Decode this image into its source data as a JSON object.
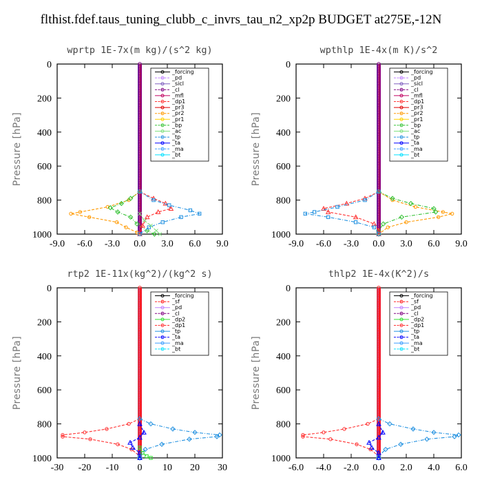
{
  "title": "flthist.fdef.taus_tuning_clubb_c_invrs_tau_n2_xp2p  BUDGET at275E,-12N",
  "colors": {
    "_forcing": "#000000",
    "_pd": "#c080ff",
    "_sicl": "#8060c0",
    "_cl": "#800080",
    "_mfl": "#c00060",
    "_dp1": "#ff3030",
    "_pr3": "#e00000",
    "_pr2": "#ff9900",
    "_pr1": "#ffd000",
    "_bp": "#30c030",
    "_ac": "#80e080",
    "_tp": "#2090e0",
    "_ta": "#0000ff",
    "_ma": "#40a0ff",
    "_bt": "#00e0ff",
    "_sf": "#ff2020",
    "_dp2": "#30e030"
  },
  "chart_data": [
    {
      "type": "line",
      "title": "wprtp  1E-7x(m kg)/(s^2 kg)",
      "ylabel": "Pressure [hPa]",
      "xlim": [
        -9,
        9
      ],
      "ylim": [
        1000,
        0
      ],
      "y_inverted": true,
      "xticks": [
        "-9.0",
        "-6.0",
        "-3.0",
        "0.0",
        "3.0",
        "6.0",
        "9.0"
      ],
      "yticks": [
        "0",
        "200",
        "400",
        "600",
        "800",
        "1000"
      ],
      "legend": [
        "_forcing",
        "_pd",
        "_sicl",
        "_cl",
        "_mfl",
        "_dp1",
        "_pr3",
        "_pr2",
        "_pr1",
        "_bp",
        "_ac",
        "_tp",
        "_ta",
        "_ma",
        "_bt"
      ],
      "series": [
        {
          "name": "_pr2",
          "p": [
            750,
            800,
            840,
            870,
            880,
            900,
            930,
            960,
            990,
            1000
          ],
          "v": [
            0,
            -1.2,
            -3.5,
            -6.5,
            -7.5,
            -5.5,
            -2.5,
            -1.5,
            -0.3,
            0
          ]
        },
        {
          "name": "_bp",
          "p": [
            750,
            790,
            820,
            845,
            870,
            900,
            940,
            980,
            1000
          ],
          "v": [
            0,
            -1,
            -2,
            -3.2,
            -2.4,
            -1,
            -0.3,
            0.8,
            1.6
          ]
        },
        {
          "name": "_dp1",
          "p": [
            750,
            790,
            820,
            850,
            870,
            900,
            950,
            1000
          ],
          "v": [
            0,
            1.5,
            2.8,
            3.4,
            2,
            0.8,
            0.3,
            0
          ]
        },
        {
          "name": "_tp",
          "p": [
            750,
            800,
            830,
            860,
            880,
            900,
            930,
            960,
            1000
          ],
          "v": [
            0,
            1.5,
            3.2,
            5.5,
            6.5,
            4.5,
            2.5,
            1,
            0
          ]
        },
        {
          "name": "_ac",
          "p": [
            880,
            920,
            950,
            980,
            1000
          ],
          "v": [
            0,
            0.5,
            1.2,
            1.8,
            2.2
          ]
        },
        {
          "name": "_forcing",
          "p": [
            0,
            1000
          ],
          "v": [
            0,
            0
          ]
        }
      ]
    },
    {
      "type": "line",
      "title": "wpthlp  1E-4x(m K)/s^2",
      "ylabel": "Pressure [hPa]",
      "xlim": [
        -9,
        9
      ],
      "ylim": [
        1000,
        0
      ],
      "y_inverted": true,
      "xticks": [
        "-9.0",
        "-6.0",
        "-3.0",
        "0.0",
        "3.0",
        "6.0",
        "9.0"
      ],
      "yticks": [
        "0",
        "200",
        "400",
        "600",
        "800",
        "1000"
      ],
      "legend": [
        "_forcing",
        "_pd",
        "_sicl",
        "_cl",
        "_mfl",
        "_dp1",
        "_pr3",
        "_pr2",
        "_pr1",
        "_bp",
        "_ac",
        "_tp",
        "_ta",
        "_ma",
        "_bt"
      ],
      "series": [
        {
          "name": "_pr2",
          "p": [
            750,
            800,
            840,
            870,
            880,
            900,
            930,
            960,
            1000
          ],
          "v": [
            0,
            1.5,
            4,
            7,
            8,
            6.5,
            3,
            1,
            0
          ]
        },
        {
          "name": "_bp",
          "p": [
            750,
            790,
            820,
            850,
            870,
            900,
            940,
            980,
            1000
          ],
          "v": [
            0,
            1.5,
            3.5,
            6,
            6.2,
            2.5,
            0.5,
            0,
            0
          ]
        },
        {
          "name": "_dp1",
          "p": [
            750,
            790,
            820,
            850,
            870,
            900,
            940,
            980,
            1000
          ],
          "v": [
            0,
            -1.5,
            -3.5,
            -6,
            -5.5,
            -2.5,
            -0.5,
            0,
            0
          ]
        },
        {
          "name": "_tp",
          "p": [
            750,
            800,
            840,
            870,
            880,
            900,
            930,
            960,
            1000
          ],
          "v": [
            0,
            -1.5,
            -4.5,
            -7,
            -8,
            -5.5,
            -2.5,
            -0.5,
            0
          ]
        },
        {
          "name": "_forcing",
          "p": [
            0,
            1000
          ],
          "v": [
            0,
            0
          ]
        }
      ]
    },
    {
      "type": "line",
      "title": "rtp2  1E-11x(kg^2)/(kg^2 s)",
      "ylabel": "Pressure [hPa]",
      "xlim": [
        -30,
        30
      ],
      "ylim": [
        1000,
        0
      ],
      "y_inverted": true,
      "xticks": [
        "-30",
        "-20",
        "-10",
        "0",
        "10",
        "20",
        "30"
      ],
      "yticks": [
        "0",
        "200",
        "400",
        "600",
        "800",
        "1000"
      ],
      "legend": [
        "_forcing",
        "_sf",
        "_pd",
        "_cl",
        "_dp2",
        "_dp1",
        "_tp",
        "_ta",
        "_ma",
        "_bt"
      ],
      "series": [
        {
          "name": "_dp1",
          "p": [
            770,
            800,
            830,
            850,
            865,
            875,
            890,
            920,
            950,
            990,
            1000
          ],
          "v": [
            0,
            -4,
            -12,
            -20,
            -28,
            -28,
            -18,
            -8,
            -3,
            0,
            0
          ]
        },
        {
          "name": "_tp",
          "p": [
            770,
            800,
            830,
            850,
            865,
            875,
            890,
            920,
            950,
            990,
            1000
          ],
          "v": [
            0,
            4,
            12,
            20,
            29,
            28,
            18,
            8,
            2,
            0,
            0
          ]
        },
        {
          "name": "_ta",
          "p": [
            800,
            850,
            880,
            910,
            940,
            970,
            1000
          ],
          "v": [
            0,
            1.5,
            0,
            -3.5,
            -2.5,
            0,
            0
          ]
        },
        {
          "name": "_dp2",
          "p": [
            940,
            970,
            990,
            1000
          ],
          "v": [
            0,
            1,
            2.5,
            4
          ]
        },
        {
          "name": "_forcing",
          "p": [
            0,
            1000
          ],
          "v": [
            0,
            0
          ]
        }
      ]
    },
    {
      "type": "line",
      "title": "thlp2  1E-4x(K^2)/s",
      "ylabel": "Pressure [hPa]",
      "xlim": [
        -6,
        6
      ],
      "ylim": [
        1000,
        0
      ],
      "y_inverted": true,
      "xticks": [
        "-6.0",
        "-4.0",
        "-2.0",
        "0.0",
        "2.0",
        "4.0",
        "6.0"
      ],
      "yticks": [
        "0",
        "200",
        "400",
        "600",
        "800",
        "1000"
      ],
      "legend": [
        "_forcing",
        "_sf",
        "_pd",
        "_cl",
        "_dp2",
        "_dp1",
        "_tp",
        "_ta",
        "_ma",
        "_bt"
      ],
      "series": [
        {
          "name": "_dp1",
          "p": [
            770,
            800,
            830,
            850,
            865,
            875,
            890,
            920,
            950,
            990,
            1000
          ],
          "v": [
            0,
            -0.8,
            -2.5,
            -4,
            -5.5,
            -5.5,
            -3.5,
            -1.6,
            -0.6,
            0,
            0
          ]
        },
        {
          "name": "_tp",
          "p": [
            770,
            800,
            830,
            850,
            865,
            875,
            890,
            920,
            950,
            990,
            1000
          ],
          "v": [
            0,
            0.8,
            2.5,
            4,
            5.8,
            5.5,
            3.5,
            1.6,
            0.5,
            0,
            0
          ]
        },
        {
          "name": "_ta",
          "p": [
            800,
            850,
            880,
            910,
            940,
            970,
            1000
          ],
          "v": [
            0,
            0.3,
            0,
            -0.7,
            -0.5,
            0,
            0
          ]
        },
        {
          "name": "_forcing",
          "p": [
            0,
            1000
          ],
          "v": [
            0,
            0
          ]
        }
      ]
    }
  ]
}
